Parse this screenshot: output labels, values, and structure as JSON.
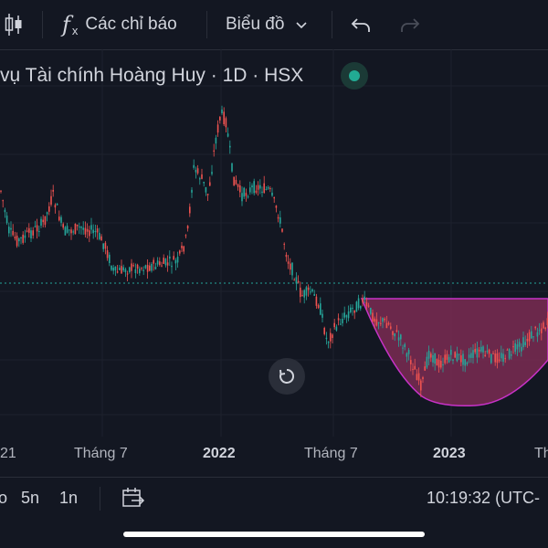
{
  "toolbar": {
    "indicators_label": "Các chỉ báo",
    "chart_type_label": "Biểu đồ"
  },
  "chart": {
    "symbol_title": "vụ Tài chính Hoàng Huy · 1D · HSX",
    "x_axis_labels": [
      "21",
      "Tháng 7",
      "2022",
      "Tháng 7",
      "2023",
      "Th"
    ],
    "pattern_fill_color": "#7b2c52",
    "pattern_stroke_color": "#c832c8",
    "price_line_color": "#26a69a",
    "up_color": "#26a69a",
    "down_color": "#ef5350"
  },
  "bottom_bar": {
    "range_partial": "o",
    "range_5y": "5n",
    "range_1y": "1n",
    "clock": "10:19:32 (UTC-"
  },
  "colors": {
    "background": "#131722",
    "border": "#2a2e39",
    "text": "#d1d4dc"
  }
}
